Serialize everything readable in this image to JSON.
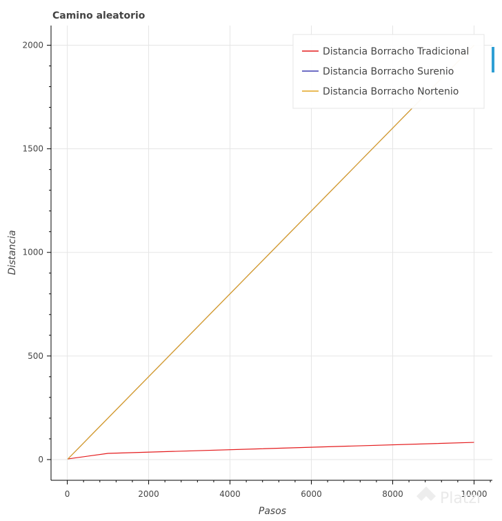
{
  "chart_data": {
    "type": "line",
    "title": "Camino aleatorio",
    "xlabel": "Pasos",
    "ylabel": "Distancia",
    "xlim": [
      -400,
      10450
    ],
    "ylim": [
      -100,
      2095
    ],
    "xticks": [
      0,
      2000,
      4000,
      6000,
      8000,
      10000
    ],
    "yticks": [
      0,
      500,
      1000,
      1500,
      2000
    ],
    "xtick_labels": [
      "0",
      "2000",
      "4000",
      "6000",
      "8000",
      "10000"
    ],
    "ytick_labels": [
      "0",
      "500",
      "1000",
      "1500",
      "2000"
    ],
    "grid": true,
    "legend_position": "top-right",
    "series": [
      {
        "name": "Distancia Borracho Tradicional",
        "color": "#e41a1c",
        "x": [
          10,
          1000,
          10000
        ],
        "y": [
          3,
          30,
          83
        ]
      },
      {
        "name": "Distancia Borracho Surenio",
        "color": "#3d3bb0",
        "x": [
          10,
          1000,
          10000
        ],
        "y": [
          2,
          200,
          2000
        ]
      },
      {
        "name": "Distancia Borracho Nortenio",
        "color": "#e2a31f",
        "x": [
          10,
          1000,
          10000
        ],
        "y": [
          2,
          200,
          2000
        ]
      }
    ]
  },
  "watermark": {
    "text": "Platzi",
    "icon": "platzi-logo-icon"
  },
  "toolbar_accent_color": "#2e9fd4"
}
